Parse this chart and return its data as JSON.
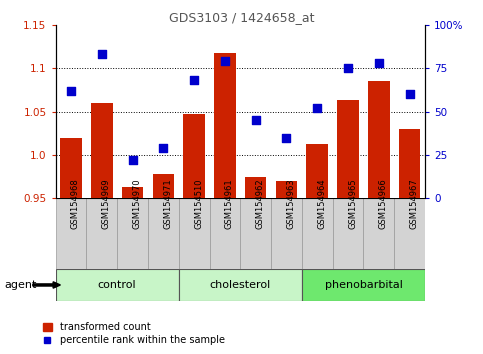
{
  "title": "GDS3103 / 1424658_at",
  "samples": [
    "GSM154968",
    "GSM154969",
    "GSM154970",
    "GSM154971",
    "GSM154510",
    "GSM154961",
    "GSM154962",
    "GSM154963",
    "GSM154964",
    "GSM154965",
    "GSM154966",
    "GSM154967"
  ],
  "transformed_count": [
    1.02,
    1.06,
    0.963,
    0.978,
    1.047,
    1.118,
    0.974,
    0.97,
    1.013,
    1.063,
    1.085,
    1.03
  ],
  "percentile_rank": [
    62,
    83,
    22,
    29,
    68,
    79,
    45,
    35,
    52,
    75,
    78,
    60
  ],
  "groups": [
    {
      "name": "control",
      "start": 0,
      "end": 3
    },
    {
      "name": "cholesterol",
      "start": 4,
      "end": 7
    },
    {
      "name": "phenobarbital",
      "start": 8,
      "end": 11
    }
  ],
  "group_colors": [
    "#c8f5c8",
    "#c8f5c8",
    "#6ee86e"
  ],
  "ylim_left": [
    0.95,
    1.15
  ],
  "ylim_right": [
    0,
    100
  ],
  "yticks_left": [
    0.95,
    1.0,
    1.05,
    1.1,
    1.15
  ],
  "ytick_labels_left": [
    "0.95",
    "1.0",
    "1.05",
    "1.1",
    "1.15"
  ],
  "yticks_right": [
    0,
    25,
    50,
    75,
    100
  ],
  "ytick_labels_right": [
    "0",
    "25",
    "50",
    "75",
    "100%"
  ],
  "bar_color": "#cc2200",
  "scatter_color": "#0000cc",
  "bar_baseline": 0.95,
  "legend_bar_label": "transformed count",
  "legend_scatter_label": "percentile rank within the sample",
  "agent_label": "agent",
  "title_color": "#555555",
  "bar_width": 0.7,
  "scatter_size": 30,
  "grid_yticks": [
    1.0,
    1.05,
    1.1
  ]
}
